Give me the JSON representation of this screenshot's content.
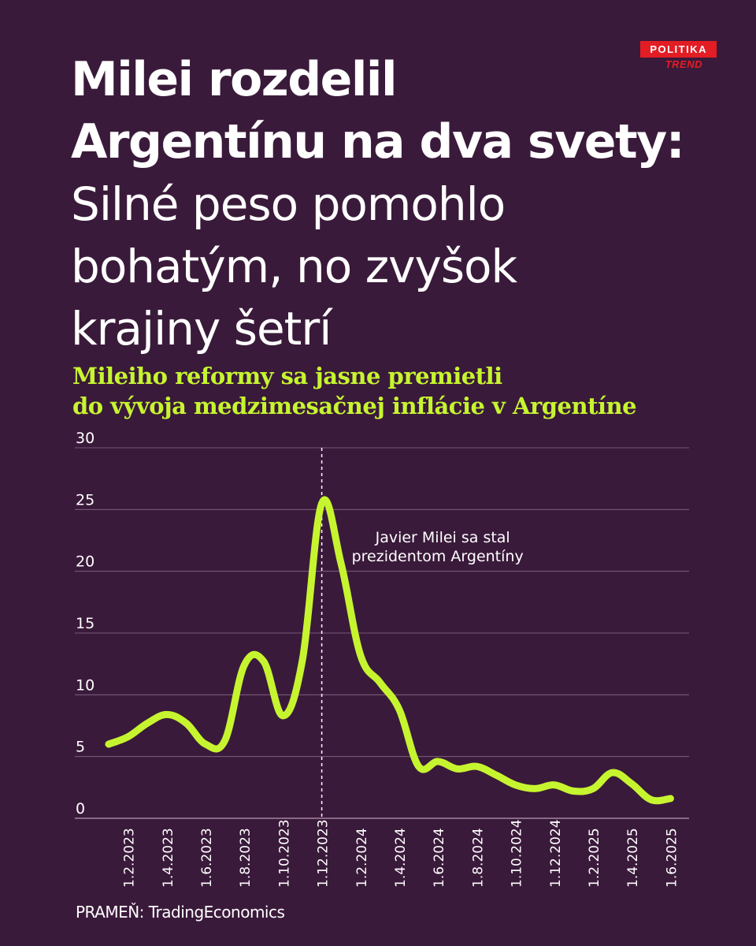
{
  "headline": {
    "bold_line1": "Milei rozdelil",
    "bold_line2": "Argentínu na dva svety:",
    "light_line1": "Silné peso pomohlo",
    "light_line2": "bohatým, no zvyšok",
    "light_line3": "krajiny šetrí"
  },
  "badge": {
    "section": "POLITIKA",
    "brand": "TREND"
  },
  "subtitle": {
    "line1": "Mileiho reformy sa jasne premietli",
    "line2": "do vývoja medzimesačnej inflácie v Argentíne"
  },
  "source": "PRAMEŇ: TradingEconomics",
  "colors": {
    "background": "#3a1a3a",
    "accent": "#c6f52f",
    "badge": "#e31d24",
    "grid": "#8a6a8a"
  },
  "chart_data": {
    "type": "line",
    "title": "",
    "xlabel": "",
    "ylabel": "",
    "ylim": [
      0,
      30
    ],
    "yticks": [
      "0",
      "5",
      "10",
      "15",
      "20",
      "25",
      "30"
    ],
    "grid": true,
    "xtick_labels": [
      "1.2.2023",
      "1.4.2023",
      "1.6.2023",
      "1.8.2023",
      "1.10.2023",
      "1.12.2023",
      "1.2.2024",
      "1.4.2024",
      "1.6.2024",
      "1.8.2024",
      "1.10.2024",
      "1.12.2024",
      "1.2.2025",
      "1.4.2025",
      "1.6.2025"
    ],
    "series": [
      {
        "values": [
          6.0,
          6.6,
          7.7,
          8.4,
          7.7,
          6.0,
          6.3,
          12.4,
          12.7,
          8.3,
          12.8,
          25.5,
          20.6,
          13.2,
          11.0,
          8.8,
          4.2,
          4.6,
          4.0,
          4.2,
          3.5,
          2.7,
          2.4,
          2.7,
          2.2,
          2.4,
          3.7,
          2.8,
          1.5,
          1.6
        ],
        "months": [
          "1.1.2023",
          "1.2.2023",
          "1.3.2023",
          "1.4.2023",
          "1.5.2023",
          "1.6.2023",
          "1.7.2023",
          "1.8.2023",
          "1.9.2023",
          "1.10.2023",
          "1.11.2023",
          "1.12.2023",
          "1.1.2024",
          "1.2.2024",
          "1.3.2024",
          "1.4.2024",
          "1.5.2024",
          "1.6.2024",
          "1.7.2024",
          "1.8.2024",
          "1.9.2024",
          "1.10.2024",
          "1.11.2024",
          "1.12.2024",
          "1.1.2025",
          "1.2.2025",
          "1.3.2025",
          "1.4.2025",
          "1.5.2025",
          "1.6.2025"
        ]
      }
    ],
    "annotation": {
      "at": "1.12.2023",
      "line1": "Javier Milei sa stal",
      "line2": "prezidentom Argentíny"
    }
  }
}
